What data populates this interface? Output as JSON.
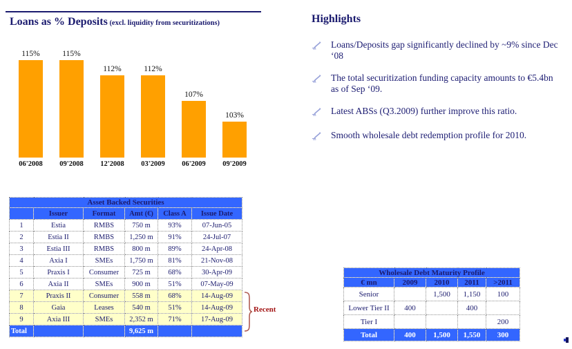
{
  "chart_section": {
    "title": "Loans as % Deposits",
    "subtitle": " (excl. liquidity from securitizations)"
  },
  "chart_data": {
    "type": "bar",
    "title": "Loans as % Deposits (excl. liquidity from securitizations)",
    "categories": [
      "06'2008",
      "09'2008",
      "12'2008",
      "03'2009",
      "06'2009",
      "09'2009"
    ],
    "values": [
      115,
      115,
      112,
      112,
      107,
      103
    ],
    "labels": [
      "115%",
      "115%",
      "112%",
      "112%",
      "107%",
      "103%"
    ],
    "ylim": [
      96,
      115
    ],
    "bar_color": "#FFA000",
    "grid": false,
    "legend": false,
    "xlabel": "",
    "ylabel": ""
  },
  "highlights": {
    "title": "Highlights",
    "bullets": [
      "Loans/Deposits gap significantly declined by ~9% since Dec ‘08",
      "The total securitization funding capacity amounts to €5.4bn as of Sep ‘09.",
      "Latest ABSs (Q3.2009) further improve this ratio.",
      "Smooth wholesale debt redemption profile for 2010."
    ]
  },
  "abs_table": {
    "title": "Asset Backed Securities",
    "headers": [
      "",
      "Issuer",
      "Format",
      "Amt (€)",
      "Class A",
      "Issue Date"
    ],
    "rows": [
      [
        "1",
        "Estia",
        "RMBS",
        "750 m",
        "93%",
        "07-Jun-05"
      ],
      [
        "2",
        "Estia II",
        "RMBS",
        "1,250 m",
        "91%",
        "24-Jul-07"
      ],
      [
        "3",
        "Estia III",
        "RMBS",
        "800 m",
        "89%",
        "24-Apr-08"
      ],
      [
        "4",
        "Axia I",
        "SMEs",
        "1,750 m",
        "81%",
        "21-Nov-08"
      ],
      [
        "5",
        "Praxis I",
        "Consumer",
        "725 m",
        "68%",
        "30-Apr-09"
      ],
      [
        "6",
        "Axia II",
        "SMEs",
        "900 m",
        "51%",
        "07-May-09"
      ],
      [
        "7",
        "Praxis II",
        "Consumer",
        "558 m",
        "68%",
        "14-Aug-09"
      ],
      [
        "8",
        "Gaia",
        "Leases",
        "540 m",
        "51%",
        "14-Aug-09"
      ],
      [
        "9",
        "Axia III",
        "SMEs",
        "2,352 m",
        "71%",
        "17-Aug-09"
      ]
    ],
    "recent_row_indices": [
      6,
      7,
      8
    ],
    "total_row": [
      "Total",
      "",
      "",
      "9,625 m",
      "",
      ""
    ],
    "annotation": "Recent"
  },
  "wholesale_table": {
    "title": "Wholesale Debt Maturity Profile",
    "headers": [
      "€ mn",
      "2009",
      "2010",
      "2011",
      ">2011"
    ],
    "rows": [
      [
        "Senior",
        "",
        "1,500",
        "1,150",
        "100"
      ],
      [
        "Lower Tier II",
        "400",
        "",
        "400",
        ""
      ],
      [
        "Tier I",
        "",
        "",
        "",
        "200"
      ]
    ],
    "total_row": [
      "Total",
      "400",
      "1,500",
      "1,550",
      "300"
    ]
  },
  "colors": {
    "navy_text": "#1a1a6e",
    "table_blue": "#3366ff",
    "bar_orange": "#FFA000",
    "recent_yellow": "#ffffc9",
    "recent_red": "#a31515",
    "brace_red": "#b05c52",
    "bullet_icon_blue": "#97a1d9"
  }
}
